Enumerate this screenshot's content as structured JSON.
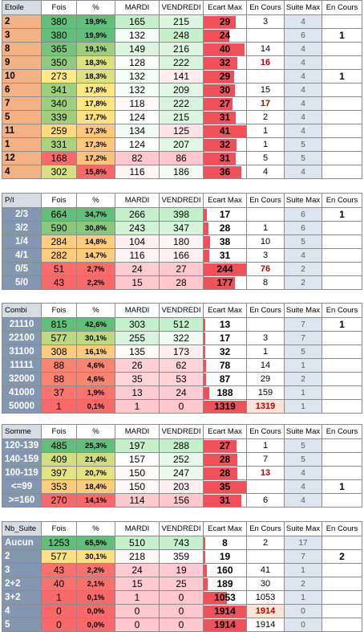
{
  "colors": {
    "label_bg": "#8497b0",
    "suite_bg": "#dde5ee",
    "bar_red": "#f0505a",
    "red_text": "#c00000"
  },
  "headers": {
    "fois": "Fois",
    "pct": "%",
    "mardi": "MARDI",
    "vendredi": "VENDREDI",
    "ecart_max": "Ecart Max",
    "en_cours": "En Cours",
    "suite_max": "Suite Max",
    "en_cours_2": "En Cours"
  },
  "blocks": [
    {
      "title": "Etoile",
      "rows": [
        {
          "label": "2",
          "fois": "380",
          "pct": "19,9%",
          "mardi": "165",
          "vendredi": "215",
          "ecart": "29",
          "ecart_level": 0.75,
          "en_cours": "3",
          "en_cours_red": false,
          "suite_max": "4",
          "en_cours_2": ""
        },
        {
          "label": "3",
          "fois": "380",
          "pct": "19,9%",
          "mardi": "132",
          "vendredi": "248",
          "ecart": "24",
          "ecart_level": 0.6,
          "en_cours": "",
          "en_cours_red": false,
          "suite_max": "6",
          "en_cours_2": "1"
        },
        {
          "label": "8",
          "fois": "365",
          "pct": "19,1%",
          "mardi": "149",
          "vendredi": "216",
          "ecart": "40",
          "ecart_level": 0.97,
          "en_cours": "14",
          "en_cours_red": false,
          "suite_max": "4",
          "en_cours_2": ""
        },
        {
          "label": "9",
          "fois": "350",
          "pct": "18,3%",
          "mardi": "128",
          "vendredi": "222",
          "ecart": "32",
          "ecart_level": 0.8,
          "en_cours": "16",
          "en_cours_red": true,
          "suite_max": "4",
          "en_cours_2": ""
        },
        {
          "label": "10",
          "fois": "273",
          "pct": "18,3%",
          "mardi": "132",
          "vendredi": "141",
          "ecart": "29",
          "ecart_level": 0.72,
          "en_cours": "",
          "en_cours_red": false,
          "suite_max": "4",
          "en_cours_2": "1"
        },
        {
          "label": "6",
          "fois": "341",
          "pct": "17,8%",
          "mardi": "132",
          "vendredi": "209",
          "ecart": "30",
          "ecart_level": 0.73,
          "en_cours": "15",
          "en_cours_red": false,
          "suite_max": "4",
          "en_cours_2": ""
        },
        {
          "label": "7",
          "fois": "340",
          "pct": "17,8%",
          "mardi": "118",
          "vendredi": "222",
          "ecart": "27",
          "ecart_level": 0.67,
          "en_cours": "17",
          "en_cours_red": true,
          "suite_max": "4",
          "en_cours_2": ""
        },
        {
          "label": "5",
          "fois": "339",
          "pct": "17,7%",
          "mardi": "124",
          "vendredi": "215",
          "ecart": "31",
          "ecart_level": 0.75,
          "en_cours": "2",
          "en_cours_red": false,
          "suite_max": "4",
          "en_cours_2": ""
        },
        {
          "label": "11",
          "fois": "259",
          "pct": "17,3%",
          "mardi": "134",
          "vendredi": "125",
          "ecart": "41",
          "ecart_level": 1.0,
          "en_cours": "1",
          "en_cours_red": false,
          "suite_max": "4",
          "en_cours_2": ""
        },
        {
          "label": "1",
          "fois": "331",
          "pct": "17,3%",
          "mardi": "124",
          "vendredi": "207",
          "ecart": "32",
          "ecart_level": 0.78,
          "en_cours": "1",
          "en_cours_red": false,
          "suite_max": "5",
          "en_cours_2": ""
        },
        {
          "label": "12",
          "fois": "168",
          "pct": "17,2%",
          "mardi": "82",
          "vendredi": "86",
          "ecart": "31",
          "ecart_level": 0.75,
          "en_cours": "5",
          "en_cours_red": false,
          "suite_max": "5",
          "en_cours_2": ""
        },
        {
          "label": "4",
          "fois": "302",
          "pct": "15,8%",
          "mardi": "116",
          "vendredi": "186",
          "ecart": "36",
          "ecart_level": 0.88,
          "en_cours": "4",
          "en_cours_red": false,
          "suite_max": "4",
          "en_cours_2": ""
        }
      ]
    },
    {
      "title": "P/I",
      "rows": [
        {
          "label": "2/3",
          "fois": "664",
          "pct": "34,7%",
          "mardi": "266",
          "vendredi": "398",
          "ecart": "17",
          "ecart_level": 0.07,
          "en_cours": "",
          "en_cours_red": false,
          "suite_max": "6",
          "en_cours_2": "1"
        },
        {
          "label": "3/2",
          "fois": "590",
          "pct": "30,8%",
          "mardi": "243",
          "vendredi": "347",
          "ecart": "28",
          "ecart_level": 0.11,
          "en_cours": "1",
          "en_cours_red": false,
          "suite_max": "6",
          "en_cours_2": ""
        },
        {
          "label": "1/4",
          "fois": "284",
          "pct": "14,8%",
          "mardi": "104",
          "vendredi": "180",
          "ecart": "38",
          "ecart_level": 0.15,
          "en_cours": "10",
          "en_cours_red": false,
          "suite_max": "5",
          "en_cours_2": ""
        },
        {
          "label": "4/1",
          "fois": "282",
          "pct": "14,7%",
          "mardi": "116",
          "vendredi": "166",
          "ecart": "31",
          "ecart_level": 0.13,
          "en_cours": "3",
          "en_cours_red": false,
          "suite_max": "4",
          "en_cours_2": ""
        },
        {
          "label": "0/5",
          "fois": "51",
          "pct": "2,7%",
          "mardi": "24",
          "vendredi": "27",
          "ecart": "244",
          "ecart_level": 1.0,
          "en_cours": "76",
          "en_cours_red": true,
          "suite_max": "2",
          "en_cours_2": ""
        },
        {
          "label": "5/0",
          "fois": "43",
          "pct": "2,2%",
          "mardi": "15",
          "vendredi": "28",
          "ecart": "177",
          "ecart_level": 0.73,
          "en_cours": "8",
          "en_cours_red": false,
          "suite_max": "2",
          "en_cours_2": ""
        }
      ]
    },
    {
      "title": "Combi",
      "rows": [
        {
          "label": "21110",
          "fois": "815",
          "pct": "42,6%",
          "mardi": "303",
          "vendredi": "512",
          "ecart": "13",
          "ecart_level": 0.01,
          "en_cours": "",
          "en_cours_red": false,
          "suite_max": "7",
          "en_cours_2": "1"
        },
        {
          "label": "22100",
          "fois": "577",
          "pct": "30,1%",
          "mardi": "255",
          "vendredi": "322",
          "ecart": "17",
          "ecart_level": 0.013,
          "en_cours": "3",
          "en_cours_red": false,
          "suite_max": "7",
          "en_cours_2": ""
        },
        {
          "label": "31100",
          "fois": "308",
          "pct": "16,1%",
          "mardi": "135",
          "vendredi": "173",
          "ecart": "32",
          "ecart_level": 0.025,
          "en_cours": "1",
          "en_cours_red": false,
          "suite_max": "5",
          "en_cours_2": ""
        },
        {
          "label": "11111",
          "fois": "88",
          "pct": "4,6%",
          "mardi": "26",
          "vendredi": "62",
          "ecart": "78",
          "ecart_level": 0.06,
          "en_cours": "14",
          "en_cours_red": false,
          "suite_max": "1",
          "en_cours_2": ""
        },
        {
          "label": "32000",
          "fois": "88",
          "pct": "4,6%",
          "mardi": "35",
          "vendredi": "53",
          "ecart": "87",
          "ecart_level": 0.066,
          "en_cours": "29",
          "en_cours_red": false,
          "suite_max": "2",
          "en_cours_2": ""
        },
        {
          "label": "41000",
          "fois": "37",
          "pct": "1,9%",
          "mardi": "13",
          "vendredi": "24",
          "ecart": "188",
          "ecart_level": 0.14,
          "en_cours": "159",
          "en_cours_red": false,
          "suite_max": "1",
          "en_cours_2": ""
        },
        {
          "label": "50000",
          "fois": "1",
          "pct": "0,1%",
          "mardi": "1",
          "vendredi": "0",
          "ecart": "1319",
          "ecart_level": 1.0,
          "en_cours": "1319",
          "en_cours_red": true,
          "suite_max": "1",
          "en_cours_2": ""
        }
      ]
    },
    {
      "title": "Somme",
      "rows": [
        {
          "label": "120-139",
          "fois": "485",
          "pct": "25,3%",
          "mardi": "197",
          "vendredi": "288",
          "ecart": "27",
          "ecart_level": 0.77,
          "en_cours": "1",
          "en_cours_red": false,
          "suite_max": "5",
          "en_cours_2": ""
        },
        {
          "label": "140-159",
          "fois": "409",
          "pct": "21,4%",
          "mardi": "157",
          "vendredi": "252",
          "ecart": "28",
          "ecart_level": 0.8,
          "en_cours": "7",
          "en_cours_red": false,
          "suite_max": "5",
          "en_cours_2": ""
        },
        {
          "label": "100-119",
          "fois": "397",
          "pct": "20,7%",
          "mardi": "150",
          "vendredi": "247",
          "ecart": "28",
          "ecart_level": 0.8,
          "en_cours": "13",
          "en_cours_red": true,
          "suite_max": "4",
          "en_cours_2": ""
        },
        {
          "label": "<=99",
          "fois": "353",
          "pct": "18,4%",
          "mardi": "150",
          "vendredi": "203",
          "ecart": "35",
          "ecart_level": 1.0,
          "en_cours": "",
          "en_cours_red": false,
          "suite_max": "4",
          "en_cours_2": "1"
        },
        {
          "label": ">=160",
          "fois": "270",
          "pct": "14,1%",
          "mardi": "114",
          "vendredi": "156",
          "ecart": "31",
          "ecart_level": 0.88,
          "en_cours": "6",
          "en_cours_red": false,
          "suite_max": "4",
          "en_cours_2": ""
        }
      ]
    },
    {
      "title": "Nb_Suite",
      "rows": [
        {
          "label": "Aucun",
          "fois": "1253",
          "pct": "65,5%",
          "mardi": "510",
          "vendredi": "743",
          "ecart": "8",
          "ecart_level": 0.004,
          "en_cours": "2",
          "en_cours_red": false,
          "suite_max": "17",
          "en_cours_2": ""
        },
        {
          "label": "2",
          "fois": "577",
          "pct": "30,1%",
          "mardi": "218",
          "vendredi": "359",
          "ecart": "19",
          "ecart_level": 0.01,
          "en_cours": "",
          "en_cours_red": false,
          "suite_max": "7",
          "en_cours_2": "2"
        },
        {
          "label": "3",
          "fois": "43",
          "pct": "2,2%",
          "mardi": "24",
          "vendredi": "19",
          "ecart": "160",
          "ecart_level": 0.08,
          "en_cours": "41",
          "en_cours_red": false,
          "suite_max": "1",
          "en_cours_2": ""
        },
        {
          "label": "2+2",
          "fois": "40",
          "pct": "2,1%",
          "mardi": "15",
          "vendredi": "25",
          "ecart": "189",
          "ecart_level": 0.1,
          "en_cours": "30",
          "en_cours_red": false,
          "suite_max": "2",
          "en_cours_2": ""
        },
        {
          "label": "3+2",
          "fois": "1",
          "pct": "0,1%",
          "mardi": "1",
          "vendredi": "0",
          "ecart": "1053",
          "ecart_level": 0.55,
          "en_cours": "1053",
          "en_cours_red": false,
          "suite_max": "1",
          "en_cours_2": ""
        },
        {
          "label": "4",
          "fois": "0",
          "pct": "0,0%",
          "mardi": "0",
          "vendredi": "0",
          "ecart": "1914",
          "ecart_level": 1.0,
          "en_cours": "1914",
          "en_cours_red": true,
          "suite_max": "0",
          "en_cours_2": ""
        },
        {
          "label": "5",
          "fois": "0",
          "pct": "0,0%",
          "mardi": "0",
          "vendredi": "0",
          "ecart": "1914",
          "ecart_level": 1.0,
          "en_cours": "1914",
          "en_cours_red": false,
          "suite_max": "0",
          "en_cours_2": ""
        }
      ]
    }
  ]
}
